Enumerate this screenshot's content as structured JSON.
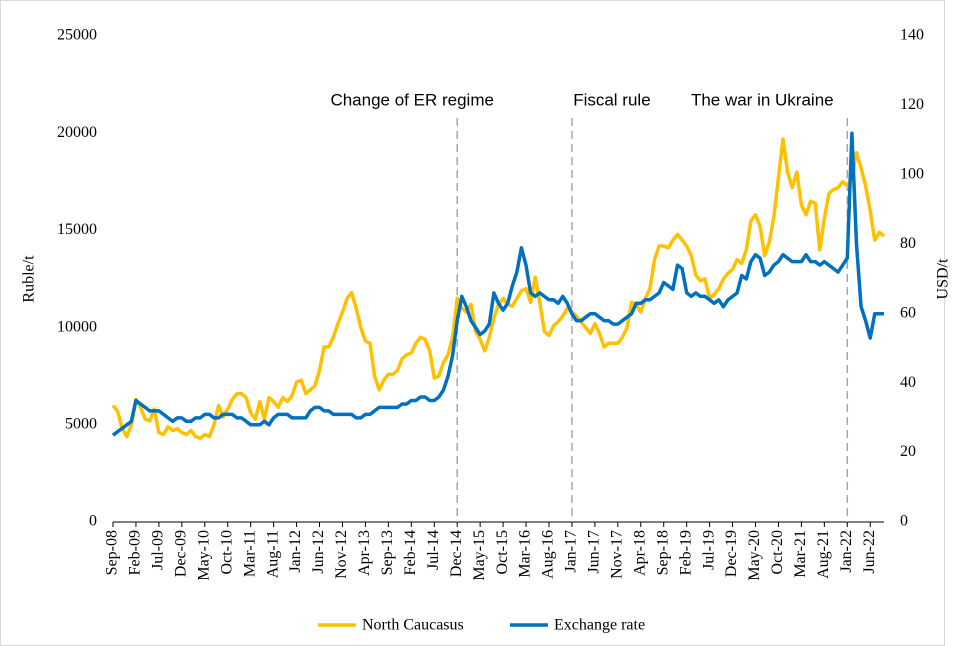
{
  "chart_data": {
    "type": "line",
    "y_label": "Ruble/t",
    "y2_label": "USD/t",
    "categories": [
      "Sep-08",
      null,
      null,
      null,
      null,
      "Feb-09",
      null,
      null,
      null,
      null,
      "Jul-09",
      null,
      null,
      null,
      null,
      "Dec-09",
      null,
      null,
      null,
      null,
      "May-10",
      null,
      null,
      null,
      null,
      "Oct-10",
      null,
      null,
      null,
      null,
      "Mar-11",
      null,
      null,
      null,
      null,
      "Aug-11",
      null,
      null,
      null,
      null,
      "Jan-12",
      null,
      null,
      null,
      null,
      "Jun-12",
      null,
      null,
      null,
      null,
      "Nov-12",
      null,
      null,
      null,
      null,
      "Apr-13",
      null,
      null,
      null,
      null,
      "Sep-13",
      null,
      null,
      null,
      null,
      "Feb-14",
      null,
      null,
      null,
      null,
      "Jul-14",
      null,
      null,
      null,
      null,
      "Dec-14",
      null,
      null,
      null,
      null,
      "May-15",
      null,
      null,
      null,
      null,
      "Oct-15",
      null,
      null,
      null,
      null,
      "Mar-16",
      null,
      null,
      null,
      null,
      "Aug-16",
      null,
      null,
      null,
      null,
      "Jan-17",
      null,
      null,
      null,
      null,
      "Jun-17",
      null,
      null,
      null,
      null,
      "Nov-17",
      null,
      null,
      null,
      null,
      "Apr-18",
      null,
      null,
      null,
      null,
      "Sep-18",
      null,
      null,
      null,
      null,
      "Feb-19",
      null,
      null,
      null,
      null,
      "Jul-19",
      null,
      null,
      null,
      null,
      "Dec-19",
      null,
      null,
      null,
      null,
      "May-20",
      null,
      null,
      null,
      null,
      "Oct-20",
      null,
      null,
      null,
      null,
      "Mar-21",
      null,
      null,
      null,
      null,
      "Aug-21",
      null,
      null,
      null,
      null,
      "Jan-22",
      null,
      null,
      null,
      null,
      "Jun-22",
      null,
      null,
      null
    ],
    "series": [
      {
        "name": "North Caucasus",
        "color": "#FFC000",
        "axis": "y",
        "values": [
          6000,
          5700,
          4800,
          4400,
          5000,
          6300,
          5900,
          5300,
          5200,
          5800,
          4600,
          4500,
          4900,
          4700,
          4800,
          4600,
          4500,
          4700,
          4400,
          4300,
          4500,
          4400,
          5000,
          6000,
          5400,
          5800,
          6300,
          6600,
          6600,
          6400,
          5600,
          5300,
          6200,
          5300,
          6400,
          6200,
          5900,
          6400,
          6200,
          6500,
          7200,
          7300,
          6600,
          6800,
          7000,
          7800,
          9000,
          9000,
          9500,
          10200,
          10800,
          11500,
          11800,
          11000,
          10000,
          9300,
          9200,
          7500,
          6800,
          7300,
          7600,
          7600,
          7800,
          8400,
          8600,
          8700,
          9200,
          9500,
          9400,
          8800,
          7400,
          7500,
          8200,
          8600,
          9500,
          11500,
          11000,
          10800,
          11200,
          9800,
          9400,
          8800,
          9500,
          10500,
          11200,
          11500,
          11200,
          11100,
          11500,
          11900,
          12000,
          11300,
          12600,
          11300,
          9800,
          9600,
          10100,
          10300,
          10600,
          11000,
          10800,
          10600,
          10300,
          10000,
          9700,
          10200,
          9700,
          9000,
          9200,
          9200,
          9200,
          9500,
          10000,
          11300,
          11200,
          10800,
          11500,
          12000,
          13500,
          14200,
          14200,
          14100,
          14500,
          14800,
          14500,
          14200,
          13700,
          12700,
          12400,
          12500,
          11500,
          11700,
          12000,
          12500,
          12800,
          13000,
          13500,
          13300,
          14000,
          15500,
          15800,
          15200,
          13700,
          14400,
          15700,
          17700,
          19700,
          18000,
          17200,
          18000,
          16300,
          15800,
          16500,
          16400,
          14000,
          15600,
          16900,
          17100,
          17200,
          17500,
          17300,
          17700,
          19000,
          18200,
          17300,
          16000,
          14500,
          14900,
          14700
        ]
      },
      {
        "name": "Exchange rate",
        "color": "#0070C0",
        "axis": "y2",
        "values": [
          25,
          26,
          27,
          28,
          29,
          35,
          34,
          33,
          32,
          32,
          32,
          31,
          30,
          29,
          30,
          30,
          29,
          29,
          30,
          30,
          31,
          31,
          30,
          30,
          31,
          31,
          31,
          30,
          30,
          29,
          28,
          28,
          28,
          29,
          28,
          30,
          31,
          31,
          31,
          30,
          30,
          30,
          30,
          32,
          33,
          33,
          32,
          32,
          31,
          31,
          31,
          31,
          31,
          30,
          30,
          31,
          31,
          32,
          33,
          33,
          33,
          33,
          33,
          34,
          34,
          35,
          35,
          36,
          36,
          35,
          35,
          36,
          38,
          42,
          48,
          58,
          65,
          62,
          58,
          56,
          54,
          55,
          57,
          66,
          63,
          61,
          63,
          68,
          72,
          79,
          74,
          66,
          65,
          66,
          65,
          64,
          64,
          63,
          65,
          63,
          60,
          58,
          58,
          59,
          60,
          60,
          59,
          58,
          58,
          57,
          57,
          58,
          59,
          60,
          63,
          63,
          64,
          64,
          65,
          66,
          69,
          68,
          67,
          74,
          73,
          66,
          65,
          66,
          65,
          65,
          64,
          63,
          64,
          62,
          64,
          65,
          66,
          71,
          70,
          75,
          77,
          76,
          71,
          72,
          74,
          75,
          77,
          76,
          75,
          75,
          75,
          77,
          75,
          75,
          74,
          75,
          74,
          73,
          72,
          74,
          76,
          112,
          80,
          62,
          58,
          53,
          60,
          60,
          60
        ]
      }
    ],
    "ylim": [
      0,
      25000
    ],
    "yticks": [
      0,
      5000,
      10000,
      15000,
      20000,
      25000
    ],
    "y2lim": [
      0,
      140
    ],
    "y2ticks": [
      0,
      20,
      40,
      60,
      80,
      100,
      120,
      140
    ],
    "annotations": [
      {
        "text": "Change of ER regime",
        "x": "Dec-14"
      },
      {
        "text": "Fiscal rule",
        "x": "Jan-17"
      },
      {
        "text": "The war in Ukraine",
        "x": "Jan-22"
      }
    ],
    "legend": "bottom"
  }
}
